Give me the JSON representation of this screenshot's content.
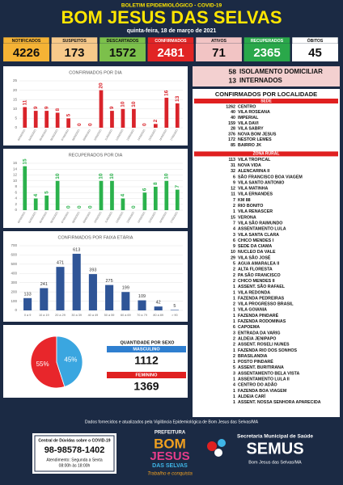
{
  "header": {
    "subtitle": "BOLETIM EPIDEMIOLÓGICO - COVID-19",
    "title": "BOM JESUS DAS SELVAS",
    "date": "quinta-feira, 18 de março de 2021"
  },
  "stats": [
    {
      "label": "NOTIFICADOS",
      "value": 4226,
      "color": "#f5b335"
    },
    {
      "label": "SUSPEITOS",
      "value": 173,
      "color": "#f7c98a"
    },
    {
      "label": "DESCARTADOS",
      "value": 1572,
      "color": "#7cc04b"
    },
    {
      "label": "CONFIRMADOS",
      "value": 2481,
      "color": "#e12424"
    },
    {
      "label": "ATIVOS",
      "value": 71,
      "color": "#f2c4c4"
    },
    {
      "label": "RECUPERADOS",
      "value": 2365,
      "color": "#2aa84a"
    },
    {
      "label": "ÓBITOS",
      "value": 45,
      "color": "#ffffff"
    }
  ],
  "chart_data": [
    {
      "type": "bar",
      "title": "CONFIRMADOS POR DIA",
      "color": "#d9232a",
      "categories": [
        "03/03/2021",
        "04/03/2021",
        "05/03/2021",
        "06/03/2021",
        "07/03/2021",
        "08/03/2021",
        "09/03/2021",
        "10/03/2021",
        "11/03/2021",
        "12/03/2021",
        "13/03/2021",
        "14/03/2021",
        "15/03/2021",
        "16/03/2021",
        "17/03/2021"
      ],
      "values": [
        11,
        9,
        9,
        8,
        5,
        0,
        0,
        20,
        9,
        10,
        10,
        0,
        2,
        16,
        13
      ],
      "ylim": [
        0,
        25
      ],
      "yticks": [
        0,
        5,
        10,
        15,
        20,
        25
      ]
    },
    {
      "type": "bar",
      "title": "RECUPERADOS POR DIA",
      "color": "#2bb24c",
      "categories": [
        "03/03/2021",
        "04/03/2021",
        "05/03/2021",
        "06/03/2021",
        "07/03/2021",
        "08/03/2021",
        "09/03/2021",
        "10/03/2021",
        "11/03/2021",
        "12/03/2021",
        "13/03/2021",
        "14/03/2021",
        "15/03/2021",
        "16/03/2021",
        "17/03/2021"
      ],
      "values": [
        15,
        4,
        5,
        10,
        0,
        0,
        0,
        10,
        10,
        4,
        0,
        6,
        8,
        10,
        7
      ],
      "ylim": [
        0,
        16
      ],
      "yticks": [
        0,
        2,
        4,
        6,
        8,
        10,
        12,
        14,
        16
      ]
    },
    {
      "type": "bar",
      "title": "CONFIRMADOS POR FAIXA ETÁRIA",
      "color": "#2f5597",
      "categories": [
        "0 a 9",
        "10 a 19",
        "20 a 29",
        "30 a 39",
        "40 a 49",
        "50 a 59",
        "60 a 69",
        "70 a 79",
        "80 a 89",
        "> 90"
      ],
      "values": [
        133,
        241,
        471,
        613,
        393,
        275,
        199,
        109,
        42,
        5
      ],
      "ylim": [
        0,
        700
      ],
      "yticks": [
        0,
        100,
        200,
        300,
        400,
        500,
        600,
        700
      ]
    },
    {
      "type": "pie",
      "values": [
        55,
        45
      ],
      "value_labels": [
        "55%",
        "45%"
      ],
      "colors": [
        "#e8262b",
        "#3aa6e0"
      ]
    }
  ],
  "sexo": {
    "title": "QUANTIDADE POR SEXO",
    "rows": [
      {
        "label": "MASCULINO",
        "value": 1112,
        "color": "#2f7fd0"
      },
      {
        "label": "FEMININO",
        "value": 1369,
        "color": "#e02020"
      }
    ]
  },
  "situacao": [
    {
      "value": 58,
      "label": "ISOLAMENTO DOMICILIAR"
    },
    {
      "value": 13,
      "label": "INTERNADOS"
    }
  ],
  "localidade": {
    "title": "CONFIRMADOS POR LOCALIDADE",
    "sections": [
      {
        "title": "SEDE",
        "rows": [
          [
            1262,
            "CENTRO"
          ],
          [
            40,
            "VILA ROSEANA"
          ],
          [
            40,
            "IMPERIAL"
          ],
          [
            159,
            "VILA DAVI"
          ],
          [
            28,
            "VILA SABRY"
          ],
          [
            376,
            "NOVA BOM JESUS"
          ],
          [
            172,
            "NESTOR LEMES"
          ],
          [
            85,
            "BAIRRO JK"
          ]
        ]
      },
      {
        "title": "ZONA RURAL",
        "rows": [
          [
            113,
            "VILA TROPICAL"
          ],
          [
            31,
            "NOVA VIDA"
          ],
          [
            32,
            "ALENCARINA II"
          ],
          [
            6,
            "SÃO FRANCISCO BOA VIAGEM"
          ],
          [
            9,
            "VILA SANTO ANTONIO"
          ],
          [
            12,
            "VILA MATINHA"
          ],
          [
            11,
            "VILA ERNANDES"
          ],
          [
            7,
            "KM 88"
          ],
          [
            2,
            "RIO BONITO"
          ],
          [
            1,
            "VILA RENASCER"
          ],
          [
            15,
            "VERONA"
          ],
          [
            7,
            "VILA SÃO RAIMUNDO"
          ],
          [
            4,
            "ASSENTAMENTO LULA"
          ],
          [
            3,
            "VILA SANTA CLARA"
          ],
          [
            6,
            "CHICO MENDES I"
          ],
          [
            9,
            "SEDE DA CIAMA"
          ],
          [
            10,
            "NUCLEO DA VALE"
          ],
          [
            29,
            "VILA SÃO JOSÉ"
          ],
          [
            5,
            "AGUA AMARALEA II"
          ],
          [
            2,
            "ALTA FLORESTA"
          ],
          [
            2,
            "PA SÃO FRANCISCO"
          ],
          [
            2,
            "CHICO MENDES II"
          ],
          [
            1,
            "ASSENT. SÃO RAFAEL"
          ],
          [
            1,
            "VILA REDONDA"
          ],
          [
            1,
            "FAZENDA PEDREIRAS"
          ],
          [
            2,
            "VILA PROGRESSO BRASIL"
          ],
          [
            1,
            "VILA GOIANIA"
          ],
          [
            1,
            "FAZENDA PINDARÉ"
          ],
          [
            1,
            "FAZENDA RODOMINAS"
          ],
          [
            6,
            "CAPOEMA"
          ],
          [
            3,
            "ENTRADA DA VARIG"
          ],
          [
            2,
            "ALDEIA JENIPAPO"
          ],
          [
            2,
            "ASSENT. ROSELI NUNES"
          ],
          [
            1,
            "FAZENDA RIO DOS SONHOS"
          ],
          [
            2,
            "BRASILANDIA"
          ],
          [
            1,
            "POSTO PINDARÉ"
          ],
          [
            5,
            "ASSENT. BURITIRANA"
          ],
          [
            3,
            "ASSENTAMENTO BELA VISTA"
          ],
          [
            1,
            "ASSENTAMENTO LULA II"
          ],
          [
            4,
            "CENTRO DO ADÃO"
          ],
          [
            1,
            "FAZENDA BOA VIAGEM"
          ],
          [
            1,
            "ALDEIA CARÍ"
          ],
          [
            1,
            "ASSENT. NOSSA SENHORA APARECIDA"
          ]
        ]
      }
    ]
  },
  "footer": {
    "source": "Dados fornecidos e atualizados pela Vigilância Epidemiológica de Bom Jesus das Selvas/MA",
    "contact": {
      "title": "Central de Dúvidas sobre o COVID-19",
      "phone": "98-98578-1402",
      "hours1": "Atendimento: Segunda a Sexta",
      "hours2": "08:00h às 18:00h"
    },
    "logo": {
      "top": "PREFEITURA",
      "name1": "BOM",
      "name2": "JESUS",
      "name3": "DAS SELVAS",
      "slogan": "Trabalho e conquista"
    },
    "semus": {
      "line1": "Secretaria Municipal de Saúde",
      "name": "SEMUS",
      "line2": "Bom Jesus das Selvas/MA"
    }
  }
}
